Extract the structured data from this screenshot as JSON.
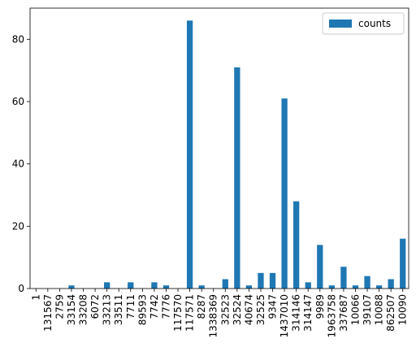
{
  "chart_data": {
    "type": "bar",
    "categories": [
      "1",
      "131567",
      "2759",
      "33154",
      "33208",
      "6072",
      "33213",
      "33511",
      "7711",
      "89593",
      "7742",
      "7776",
      "117570",
      "117571",
      "8287",
      "1338369",
      "32523",
      "32524",
      "40674",
      "32525",
      "9347",
      "1437010",
      "314146",
      "314147",
      "9989",
      "1963758",
      "337687",
      "10066",
      "39107",
      "10088",
      "862507",
      "10090"
    ],
    "series": [
      {
        "name": "counts",
        "color": "#1f77b4",
        "values": [
          0,
          0,
          0,
          1,
          0,
          0,
          2,
          0,
          2,
          0,
          2,
          1,
          0,
          86,
          1,
          0,
          3,
          71,
          1,
          5,
          5,
          61,
          28,
          2,
          14,
          1,
          7,
          1,
          4,
          1,
          3,
          16
        ]
      }
    ],
    "ylim": [
      0,
      90
    ],
    "yticks": [
      0,
      20,
      40,
      60,
      80
    ],
    "legend": "upper right"
  }
}
